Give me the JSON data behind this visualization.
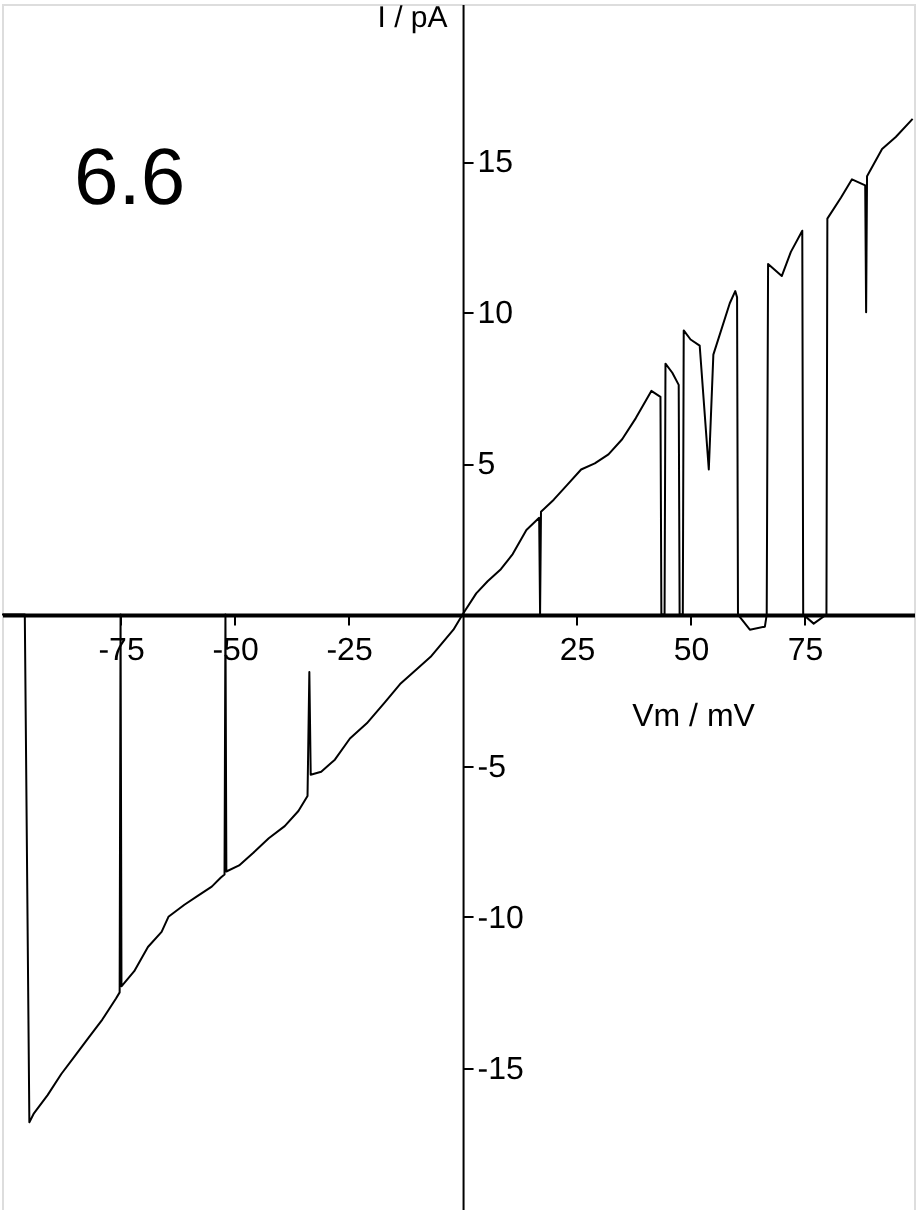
{
  "chart_data": {
    "type": "line",
    "xlabel": "Vm / mV",
    "ylabel": "I / pA",
    "annotations": [
      "6.6"
    ],
    "xlim": [
      -101,
      99
    ],
    "ylim": [
      -19.7,
      20.2
    ],
    "xticks": [
      -75,
      -50,
      -25,
      25,
      50,
      75
    ],
    "yticks": [
      -15,
      -10,
      -5,
      5,
      10,
      15
    ],
    "grid": false,
    "series": [
      {
        "color": "#000000",
        "line_style": "solid",
        "x": [
          -101,
          -96,
          -95,
          -94,
          -91,
          -88,
          -85,
          -82,
          -79,
          -76,
          -75.2,
          -75,
          -74.8,
          -72,
          -69,
          -66,
          -64.5,
          -61,
          -58,
          -55,
          -53,
          -52.2,
          -52,
          -51.8,
          -49,
          -46,
          -42.5,
          -39,
          -36,
          -34,
          -33.6,
          -33.3,
          -31,
          -28,
          -24.7,
          -21,
          -17,
          -13.7,
          -10,
          -7,
          -4.8,
          -2,
          0,
          3,
          5.5,
          8.4,
          11,
          14,
          16.8,
          17,
          17.2,
          20,
          23,
          26,
          29,
          32,
          35,
          38,
          41.4,
          43.4,
          43.6,
          44.3,
          44.5,
          46,
          47.4,
          47.6,
          48.3,
          48.5,
          50,
          52,
          54,
          55,
          58.6,
          59.8,
          60.2,
          60.4,
          63,
          66.3,
          66.7,
          67,
          70,
          72,
          74.5,
          74.7,
          77,
          79.8,
          80,
          83,
          85.4,
          88.3,
          88.5,
          88.7,
          92,
          95,
          98.7
        ],
        "values": [
          0,
          0,
          -16.8,
          -16.5,
          -15.9,
          -15.2,
          -14.6,
          -14.0,
          -13.4,
          -12.7,
          -12.5,
          0,
          -12.3,
          -11.8,
          -11.0,
          -10.5,
          -10.0,
          -9.6,
          -9.3,
          -9.0,
          -8.7,
          -8.6,
          0,
          -8.5,
          -8.3,
          -7.9,
          -7.4,
          -7.0,
          -6.5,
          -6.0,
          -1.9,
          -5.3,
          -5.2,
          -4.8,
          -4.1,
          -3.6,
          -2.9,
          -2.3,
          -1.8,
          -1.4,
          -1.0,
          -0.5,
          0,
          0.7,
          1.1,
          1.5,
          2.0,
          2.8,
          3.2,
          0,
          3.4,
          3.8,
          4.3,
          4.8,
          5.0,
          5.3,
          5.8,
          6.5,
          7.4,
          7.2,
          0,
          0,
          8.3,
          8.0,
          7.6,
          0,
          0,
          9.4,
          9.1,
          8.9,
          4.8,
          8.6,
          10.3,
          10.7,
          10.5,
          0,
          -0.5,
          -0.4,
          0,
          11.6,
          11.2,
          12.0,
          12.7,
          0,
          -0.3,
          0,
          13.1,
          13.8,
          14.4,
          14.2,
          10.0,
          14.5,
          15.4,
          15.8,
          16.4
        ]
      }
    ]
  }
}
